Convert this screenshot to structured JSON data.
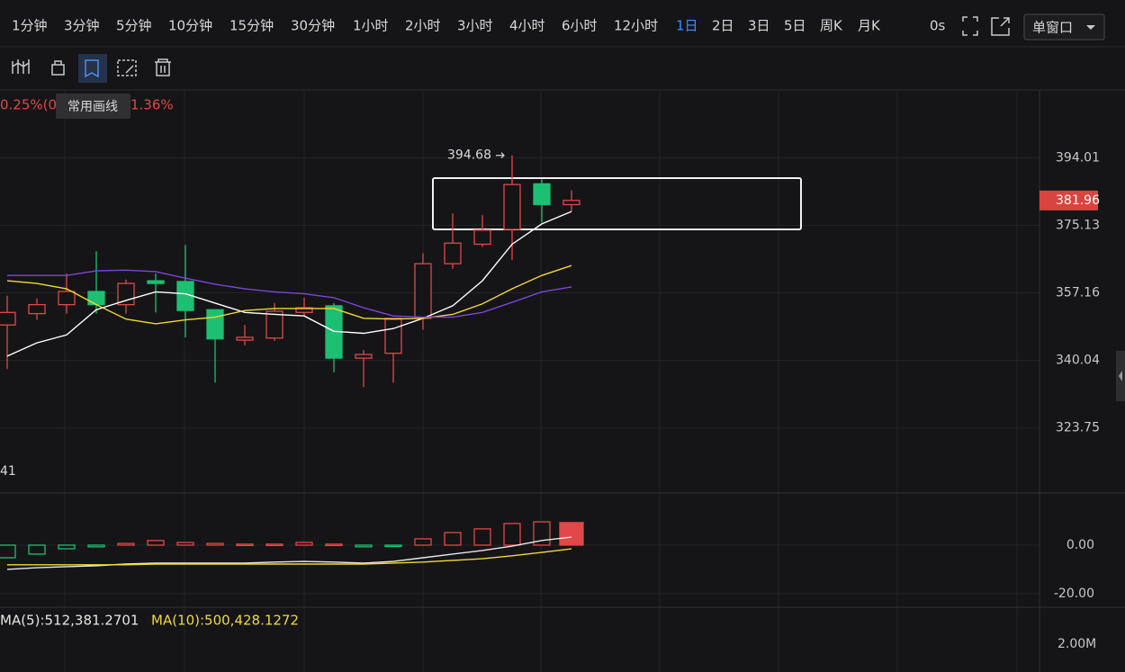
{
  "toolbar": {
    "intervals": [
      "1分钟",
      "3分钟",
      "5分钟",
      "10分钟",
      "15分钟",
      "30分钟",
      "1小时",
      "2小时",
      "3小时",
      "4小时",
      "6小时",
      "12小时",
      "1日",
      "2日",
      "3日",
      "5日",
      "周K",
      "月K"
    ],
    "active_interval": 12,
    "refresh": "0s",
    "window_mode": "单窗口"
  },
  "drawing_toolbar": {
    "tooltip": "常用画线",
    "active_tool": 2
  },
  "info": {
    "change_fragment": "0.25%(0",
    "amplitude_fragment": "1.36%",
    "indicator_fragment": "41"
  },
  "volume_panel": {
    "ma5_label": "MA(5):512,381.2701",
    "ma10_label": "MA(10):500,428.1272",
    "axis_label": "2.00M"
  },
  "chart_data": [
    {
      "type": "candlestick",
      "log_scale": true,
      "ylim": [
        308.8,
        413.9
      ],
      "yticks": [
        394.01,
        375.13,
        357.16,
        340.04,
        323.75
      ],
      "grid": true,
      "up_color": "#e0484a",
      "down_color": "#1dbf72",
      "open": [
        348.9,
        351.8,
        354.1,
        357.5,
        354.1,
        360.3,
        360.1,
        352.8,
        345.1,
        345.6,
        352.1,
        353.8,
        340.6,
        341.8,
        350.6,
        364.8,
        370.0,
        374.0,
        386.6,
        380.8
      ],
      "high": [
        356.4,
        355.7,
        362.2,
        368.1,
        360.6,
        362.2,
        369.8,
        352.8,
        348.9,
        354.5,
        355.9,
        354.5,
        342.6,
        350.6,
        367.6,
        378.4,
        377.9,
        394.68,
        387.9,
        384.8
      ],
      "low": [
        337.9,
        350.2,
        351.8,
        351.8,
        351.8,
        352.1,
        345.8,
        334.6,
        343.8,
        344.9,
        351.2,
        337.1,
        333.5,
        334.6,
        347.7,
        363.4,
        369.3,
        365.8,
        375.9,
        378.9
      ],
      "close": [
        352.1,
        354.1,
        357.5,
        354.1,
        359.6,
        359.6,
        352.6,
        345.4,
        345.8,
        352.4,
        353.3,
        340.6,
        341.5,
        350.6,
        364.8,
        370.3,
        373.8,
        386.4,
        380.8,
        381.96
      ],
      "lines": [
        {
          "color": "#ffffff",
          "values": [
            341.1,
            344.4,
            346.4,
            352.8,
            355.2,
            357.4,
            356.9,
            354.5,
            352.1,
            351.6,
            351.2,
            347.3,
            346.8,
            348.0,
            350.6,
            353.8,
            360.3,
            370.0,
            375.5,
            378.9
          ]
        },
        {
          "color": "#f0d83a",
          "values": [
            360.3,
            359.6,
            358.2,
            354.1,
            350.4,
            349.2,
            350.2,
            350.9,
            352.6,
            353.1,
            353.1,
            353.1,
            350.6,
            350.4,
            350.6,
            351.6,
            354.3,
            358.2,
            361.7,
            364.3
          ]
        },
        {
          "color": "#7b45d9",
          "values": [
            361.7,
            361.7,
            361.7,
            362.9,
            363.1,
            362.7,
            361.0,
            359.4,
            358.2,
            357.4,
            356.9,
            355.9,
            353.3,
            351.2,
            350.9,
            350.9,
            352.1,
            354.7,
            357.4,
            358.7
          ]
        }
      ],
      "last_price": 381.96,
      "last_price_color": "#d9443f",
      "max_high": 394.68
    },
    {
      "type": "bar",
      "ylim": [
        -25.6,
        21.5
      ],
      "yticks": [
        {
          "value": 0,
          "label": "0.00"
        },
        {
          "value": -20,
          "label": "-20.00"
        }
      ],
      "grid": true,
      "up_color": "#e0484a",
      "down_color": "#1dbf72",
      "values": [
        -5.2,
        -3.7,
        -1.5,
        -0.7,
        0.7,
        1.9,
        1.1,
        0.7,
        0.4,
        0.4,
        1.1,
        0.4,
        -0.7,
        -0.4,
        2.6,
        5.2,
        6.7,
        8.9,
        9.6,
        9.3
      ],
      "lines": [
        {
          "color": "#e8e8e8",
          "values": [
            -10.0,
            -9.3,
            -8.9,
            -8.5,
            -7.8,
            -7.4,
            -7.4,
            -7.4,
            -7.4,
            -7.0,
            -6.7,
            -7.0,
            -7.4,
            -6.7,
            -5.2,
            -3.7,
            -2.2,
            -0.4,
            1.9,
            3.3
          ]
        },
        {
          "color": "#f0d83a",
          "values": [
            -8.1,
            -8.1,
            -8.1,
            -8.1,
            -8.1,
            -7.8,
            -7.8,
            -7.8,
            -7.8,
            -7.8,
            -7.8,
            -7.8,
            -7.8,
            -7.4,
            -7.0,
            -6.3,
            -5.6,
            -4.4,
            -3.0,
            -1.5
          ]
        }
      ]
    }
  ]
}
